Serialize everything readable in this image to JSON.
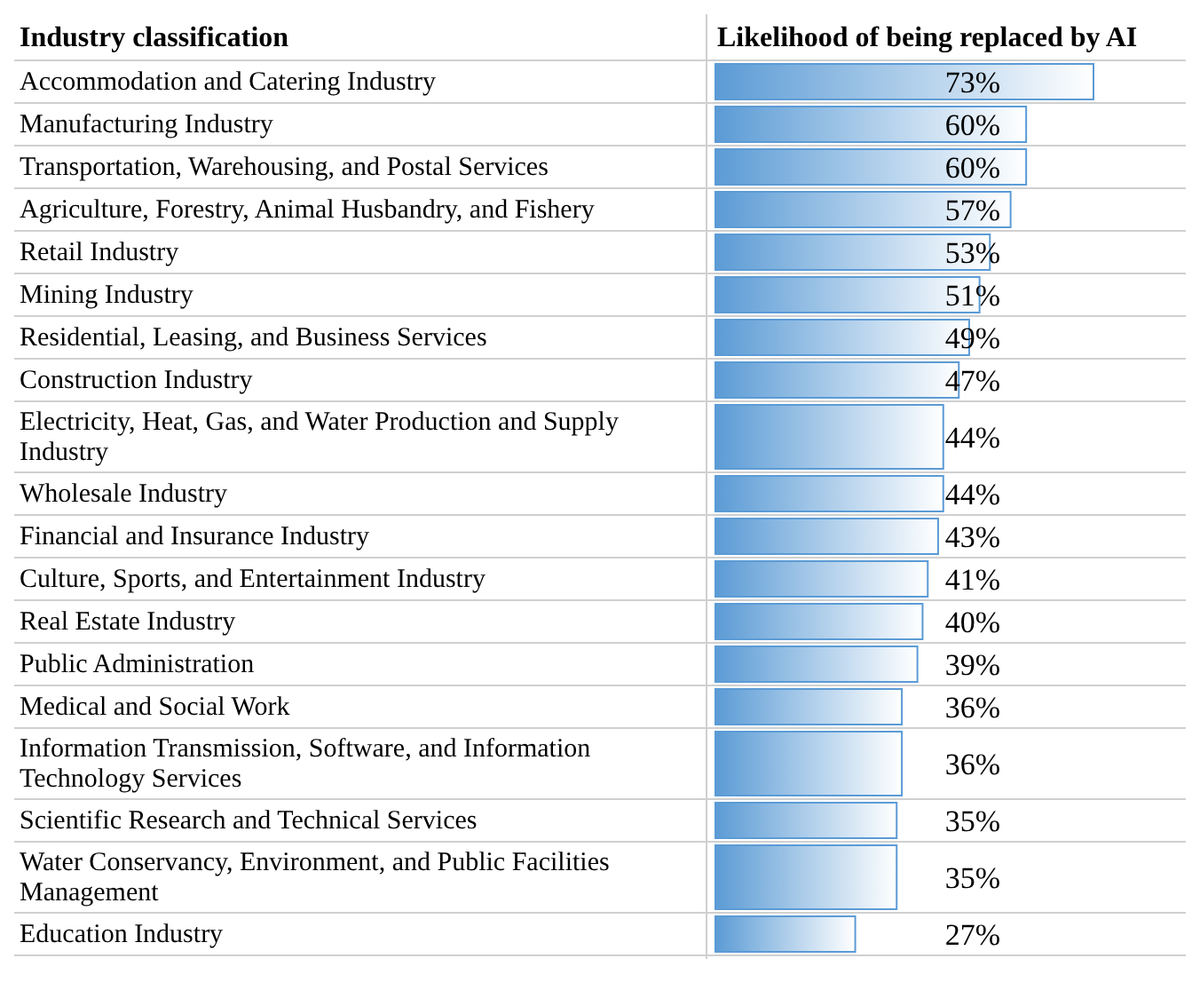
{
  "chart_data": {
    "type": "bar",
    "orientation": "horizontal",
    "ylabel": "Industry classification",
    "xlabel": "Likelihood of being replaced by AI",
    "color": "#5b9bd5",
    "categories": [
      "Accommodation and Catering Industry",
      "Manufacturing Industry",
      "Transportation, Warehousing, and Postal Services",
      "Agriculture, Forestry, Animal Husbandry, and Fishery",
      "Retail Industry",
      "Mining Industry",
      "Residential, Leasing, and Business Services",
      "Construction Industry",
      "Electricity, Heat, Gas, and Water Production and Supply Industry",
      "Wholesale Industry",
      "Financial and Insurance Industry",
      "Culture, Sports, and Entertainment Industry",
      "Real Estate Industry",
      "Public Administration",
      "Medical and Social Work",
      "Information Transmission, Software, and Information Technology Services",
      "Scientific Research and Technical Services",
      "Water Conservancy, Environment, and Public Facilities Management",
      "Education Industry"
    ],
    "values": [
      73,
      60,
      60,
      57,
      53,
      51,
      49,
      47,
      44,
      44,
      43,
      41,
      40,
      39,
      36,
      36,
      35,
      35,
      27
    ],
    "value_labels": [
      "73%",
      "60%",
      "60%",
      "57%",
      "53%",
      "51%",
      "49%",
      "47%",
      "44%",
      "44%",
      "43%",
      "41%",
      "40%",
      "39%",
      "36%",
      "36%",
      "35%",
      "35%",
      "27%"
    ]
  }
}
